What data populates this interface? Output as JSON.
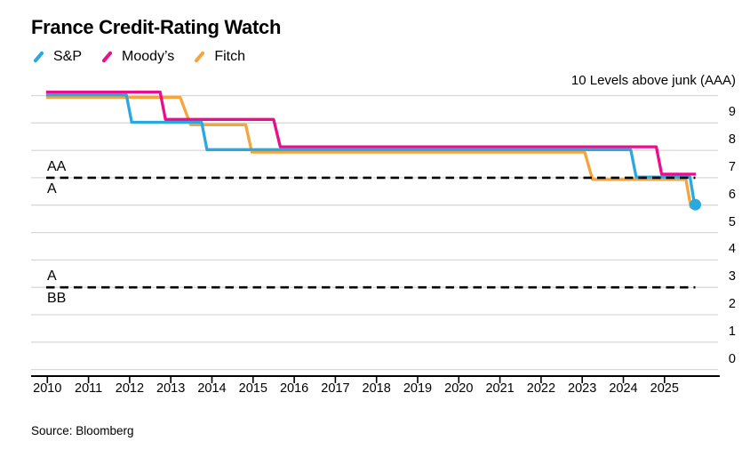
{
  "title": "France Credit-Rating Watch",
  "source": "Source: Bloomberg",
  "legend": [
    {
      "name": "S&P",
      "color": "#29A9E0"
    },
    {
      "name": "Moody’s",
      "color": "#EA0D8C"
    },
    {
      "name": "Fitch",
      "color": "#F7A43C"
    }
  ],
  "chart_data": {
    "type": "line",
    "subtype": "step",
    "title": "France Credit-Rating Watch",
    "y_axis_top_label": "10 Levels above junk (AAA)",
    "ylim": [
      0,
      10
    ],
    "grid": true,
    "legend_position": "top-left",
    "y_ticks": [
      0,
      1,
      2,
      3,
      4,
      5,
      6,
      7,
      8,
      9
    ],
    "x_ticks": [
      2010,
      2011,
      2012,
      2013,
      2014,
      2015,
      2016,
      2017,
      2018,
      2019,
      2020,
      2021,
      2022,
      2023,
      2024,
      2025
    ],
    "series": [
      {
        "name": "S&P",
        "color": "#29A9E0",
        "marker_end": true,
        "points": [
          [
            2009.97,
            10
          ],
          [
            2011.92,
            10
          ],
          [
            2012.05,
            9
          ],
          [
            2013.75,
            9
          ],
          [
            2013.88,
            8
          ],
          [
            2024.18,
            8
          ],
          [
            2024.31,
            7
          ],
          [
            2025.62,
            7
          ],
          [
            2025.73,
            6
          ],
          [
            2025.75,
            6
          ]
        ]
      },
      {
        "name": "Moody’s",
        "color": "#EA0D8C",
        "marker_end": false,
        "points": [
          [
            2009.97,
            10
          ],
          [
            2012.74,
            10
          ],
          [
            2012.87,
            9
          ],
          [
            2015.5,
            9
          ],
          [
            2015.66,
            8
          ],
          [
            2024.8,
            8
          ],
          [
            2024.93,
            7
          ],
          [
            2025.76,
            7
          ]
        ]
      },
      {
        "name": "Fitch",
        "color": "#F7A43C",
        "marker_end": false,
        "points": [
          [
            2009.97,
            10
          ],
          [
            2013.23,
            10
          ],
          [
            2013.48,
            9
          ],
          [
            2014.82,
            9
          ],
          [
            2014.97,
            8
          ],
          [
            2023.06,
            8
          ],
          [
            2023.25,
            7
          ],
          [
            2025.52,
            7
          ],
          [
            2025.64,
            6
          ],
          [
            2025.75,
            6
          ]
        ]
      }
    ],
    "rating_bands": [
      {
        "level": 7,
        "label_above": "AA",
        "label_below": "A"
      },
      {
        "level": 3,
        "label_above": "A",
        "label_below": "BB"
      }
    ]
  }
}
